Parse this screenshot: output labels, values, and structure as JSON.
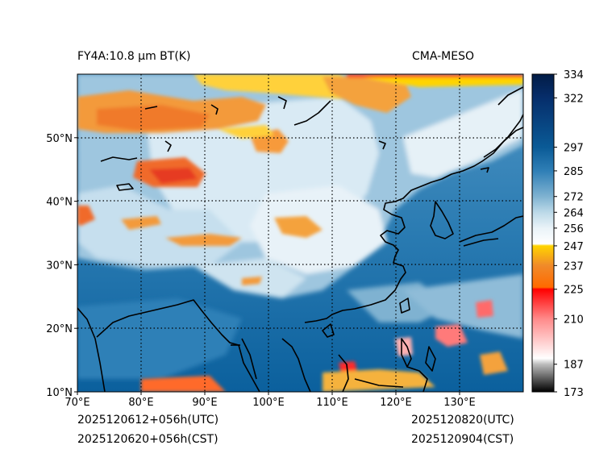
{
  "header": {
    "title_left": "FY4A:10.8 µm BT(K)",
    "title_right": "CMA-MESO"
  },
  "footer": {
    "init_utc": "2025120612+056h(UTC)",
    "init_cst": "2025120620+056h(CST)",
    "valid_utc": "2025120820(UTC)",
    "valid_cst": "2025120904(CST)"
  },
  "map": {
    "lon_range": [
      70,
      140
    ],
    "lat_range": [
      10,
      60
    ],
    "lon_ticks": [
      {
        "value": 70,
        "label": "70°E"
      },
      {
        "value": 80,
        "label": "80°E"
      },
      {
        "value": 90,
        "label": "90°E"
      },
      {
        "value": 100,
        "label": "100°E"
      },
      {
        "value": 110,
        "label": "110°E"
      },
      {
        "value": 120,
        "label": "120°E"
      },
      {
        "value": 130,
        "label": "130°E"
      }
    ],
    "lat_ticks": [
      {
        "value": 10,
        "label": "10°N"
      },
      {
        "value": 20,
        "label": "20°N"
      },
      {
        "value": 30,
        "label": "30°N"
      },
      {
        "value": 40,
        "label": "40°N"
      },
      {
        "value": 50,
        "label": "50°N"
      }
    ]
  },
  "colorbar": {
    "range": [
      173,
      334
    ],
    "ticks": [
      334,
      322,
      297,
      285,
      272,
      264,
      256,
      247,
      237,
      225,
      210,
      187,
      173
    ],
    "stops": [
      {
        "value": 173,
        "color": "#000000"
      },
      {
        "value": 187,
        "color": "#bdbdbd"
      },
      {
        "value": 190,
        "color": "#ffffff"
      },
      {
        "value": 210,
        "color": "#ff8a8a"
      },
      {
        "value": 225,
        "color": "#ff0000"
      },
      {
        "value": 226,
        "color": "#ff6a00"
      },
      {
        "value": 237,
        "color": "#f08a2a"
      },
      {
        "value": 247,
        "color": "#ffd400"
      },
      {
        "value": 248,
        "color": "#ffffff"
      },
      {
        "value": 256,
        "color": "#eaf3f8"
      },
      {
        "value": 264,
        "color": "#bcd9e8"
      },
      {
        "value": 272,
        "color": "#7fb2d1"
      },
      {
        "value": 285,
        "color": "#2f7fb6"
      },
      {
        "value": 297,
        "color": "#0a5a96"
      },
      {
        "value": 322,
        "color": "#062e6b"
      },
      {
        "value": 334,
        "color": "#021c46"
      }
    ]
  }
}
